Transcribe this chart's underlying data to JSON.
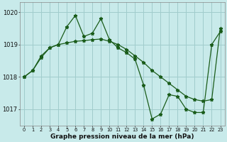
{
  "title": "Graphe pression niveau de la mer (hPa)",
  "bg_color": "#c8eaea",
  "grid_color": "#a0cccc",
  "line_color": "#1a5c1a",
  "xlim": [
    -0.5,
    23.5
  ],
  "ylim": [
    1016.5,
    1020.3
  ],
  "yticks": [
    1017,
    1018,
    1019,
    1020
  ],
  "xticks": [
    0,
    1,
    2,
    3,
    4,
    5,
    6,
    7,
    8,
    9,
    10,
    11,
    12,
    13,
    14,
    15,
    16,
    17,
    18,
    19,
    20,
    21,
    22,
    23
  ],
  "line1_x": [
    0,
    1,
    2,
    3,
    4,
    5,
    6,
    7,
    8,
    9,
    10,
    11,
    12,
    13,
    14,
    15,
    16,
    17,
    18,
    19,
    20,
    21,
    22,
    23
  ],
  "line1_y": [
    1018.0,
    1018.2,
    1018.65,
    1018.9,
    1019.0,
    1019.55,
    1019.9,
    1019.25,
    1019.35,
    1019.8,
    1019.15,
    1018.9,
    1018.75,
    1018.55,
    1017.75,
    1016.7,
    1016.85,
    1017.45,
    1017.4,
    1017.0,
    1016.9,
    1016.9,
    1019.0,
    1019.4
  ],
  "line2_x": [
    0,
    1,
    2,
    3,
    4,
    5,
    6,
    7,
    8,
    9,
    10,
    11,
    12,
    13,
    14,
    15,
    16,
    17,
    18,
    19,
    20,
    21,
    22,
    23
  ],
  "line2_y": [
    1018.0,
    1018.2,
    1018.6,
    1018.9,
    1019.0,
    1019.05,
    1019.1,
    1019.12,
    1019.15,
    1019.17,
    1019.1,
    1019.0,
    1018.85,
    1018.65,
    1018.45,
    1018.2,
    1018.0,
    1017.8,
    1017.6,
    1017.4,
    1017.3,
    1017.25,
    1017.3,
    1019.5
  ]
}
